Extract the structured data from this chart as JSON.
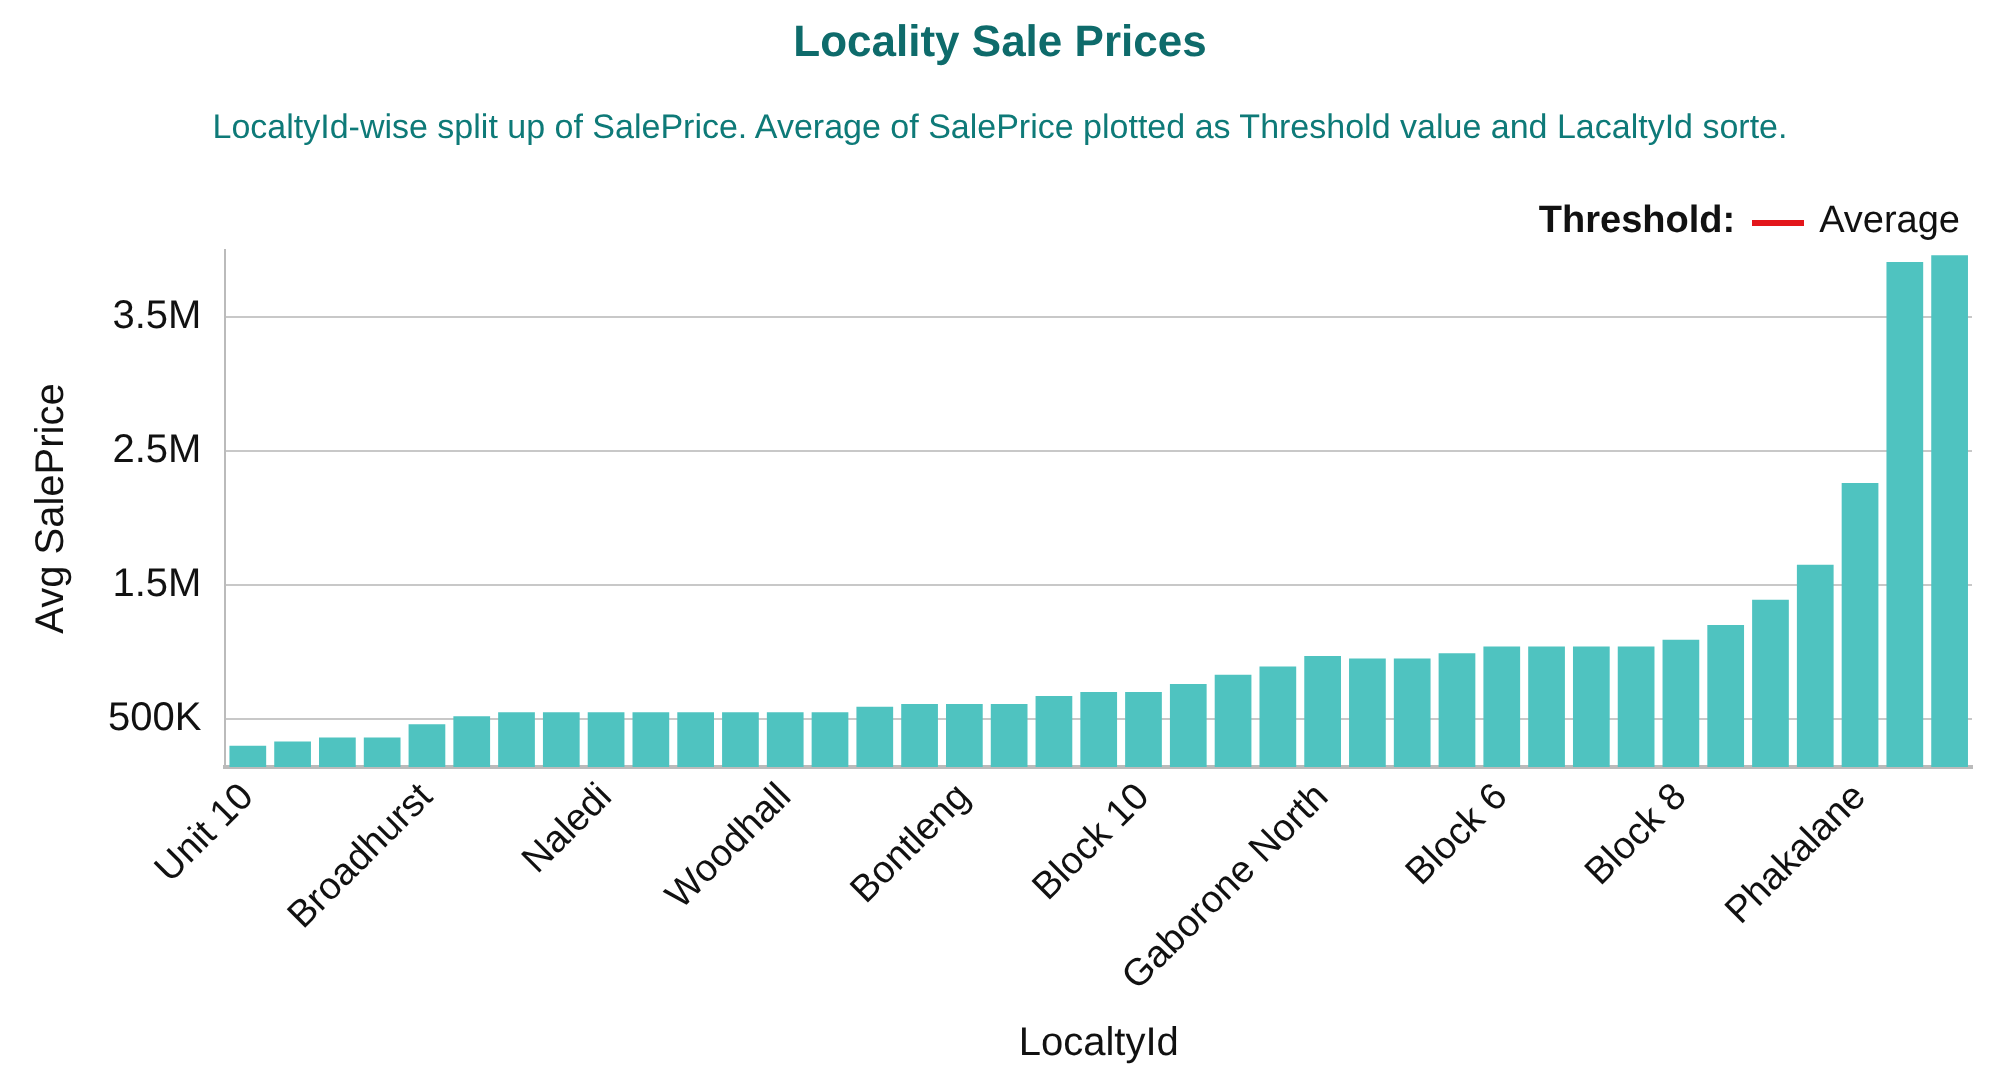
{
  "chart_data": {
    "type": "bar",
    "title": "Locality Sale Prices",
    "subtitle": "LocaltyId-wise split up of SalePrice. Average of SalePrice plotted as Threshold value and LacaltyId sorte.",
    "xlabel": "LocaltyId",
    "ylabel": "Avg SalePrice",
    "categories": [
      "Unit 10",
      null,
      null,
      null,
      "Broadhurst",
      null,
      null,
      null,
      "Naledi",
      null,
      null,
      null,
      "Woodhall",
      null,
      null,
      null,
      "Bontleng",
      null,
      null,
      null,
      "Block 10",
      null,
      null,
      null,
      "Gaborone North",
      null,
      null,
      null,
      "Block 6",
      null,
      null,
      null,
      "Block 8",
      null,
      null,
      null,
      "Phakalane",
      null,
      null
    ],
    "series": [
      {
        "color": "#4fc3c0",
        "values": [
          300000,
          330000,
          360000,
          360000,
          460000,
          520000,
          550000,
          550000,
          550000,
          550000,
          550000,
          550000,
          550000,
          550000,
          590000,
          610000,
          610000,
          610000,
          670000,
          700000,
          700000,
          760000,
          830000,
          890000,
          970000,
          950000,
          950000,
          990000,
          1040000,
          1040000,
          1040000,
          1040000,
          1090000,
          1200000,
          1390000,
          1650000,
          2260000,
          3910000,
          3960000
        ]
      },
      {
        "type": "line",
        "name": "Average",
        "color": "#e3161b",
        "values": [
          null,
          null,
          null,
          null,
          null,
          null,
          null,
          null,
          null,
          null,
          null,
          null,
          null,
          null,
          null,
          null,
          null,
          null,
          null,
          null,
          null,
          null,
          null,
          null,
          null,
          null,
          null,
          null,
          null,
          null,
          null,
          null,
          null,
          null,
          null,
          null,
          null,
          null,
          null
        ]
      }
    ],
    "ylim": [
      140000,
      4000000
    ],
    "yticks": [
      {
        "value": 500000,
        "label": "500K"
      },
      {
        "value": 1500000,
        "label": "1.5M"
      },
      {
        "value": 2500000,
        "label": "2.5M"
      },
      {
        "value": 3500000,
        "label": "3.5M"
      }
    ],
    "grid": "y",
    "legend": "top right",
    "legend_title": "Threshold:"
  }
}
